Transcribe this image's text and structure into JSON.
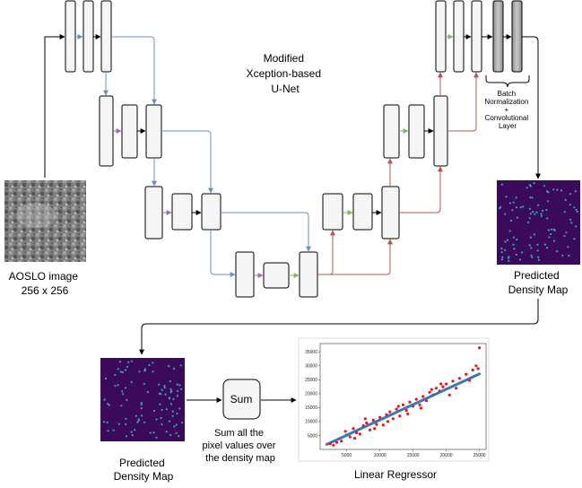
{
  "title": {
    "lines": [
      "Modified",
      "Xception-based",
      "U-Net"
    ]
  },
  "input_image": {
    "lines": [
      "AOSLO image",
      "256 x 256"
    ]
  },
  "predicted_top": {
    "lines": [
      "Predicted",
      "Density Map"
    ]
  },
  "predicted_bottom": {
    "lines": [
      "Predicted",
      "Density Map"
    ]
  },
  "bn_note": {
    "lines": [
      "Batch",
      "Normalization",
      "+",
      "Convolutional",
      "Layer"
    ]
  },
  "sum_box": {
    "label": "Sum"
  },
  "sum_note": {
    "lines": [
      "Sum all the",
      "pixel values over",
      "the density map"
    ]
  },
  "regressor": {
    "label": "Linear Regressor"
  },
  "colors": {
    "block_fill": "#f5f5f5",
    "block_stroke": "#000000",
    "bn_fill": "#a8a8a8",
    "arrow_blue": "#6c8ebf",
    "arrow_red": "#b85450",
    "arrow_green": "#82b366",
    "arrow_purple": "#9673a6",
    "density_bg": "#3b0a5a",
    "density_dot": "#3aa5b8"
  },
  "chart_data": {
    "type": "scatter",
    "x_ticks": [
      "5000",
      "10000",
      "15000",
      "20000",
      "25000"
    ],
    "y_ticks": [
      "5000",
      "10000",
      "15000",
      "20000",
      "25000",
      "30000",
      "35000"
    ],
    "xlim": [
      1000,
      26000
    ],
    "ylim": [
      0,
      38000
    ],
    "series": [
      {
        "color": "#e31a1c",
        "marker": "dot",
        "points": [
          [
            2500,
            2000
          ],
          [
            3500,
            2500
          ],
          [
            4200,
            3000
          ],
          [
            5000,
            5200
          ],
          [
            5500,
            4500
          ],
          [
            6000,
            7500
          ],
          [
            6500,
            6000
          ],
          [
            7000,
            5500
          ],
          [
            7500,
            8500
          ],
          [
            8000,
            9500
          ],
          [
            8500,
            7000
          ],
          [
            9000,
            10500
          ],
          [
            9500,
            9000
          ],
          [
            10000,
            11500
          ],
          [
            10500,
            8800
          ],
          [
            11000,
            12500
          ],
          [
            11500,
            13500
          ],
          [
            12000,
            11000
          ],
          [
            12500,
            14500
          ],
          [
            13000,
            12000
          ],
          [
            13500,
            16000
          ],
          [
            14000,
            14000
          ],
          [
            14500,
            17000
          ],
          [
            15000,
            15500
          ],
          [
            15500,
            18000
          ],
          [
            16000,
            16000
          ],
          [
            16500,
            19000
          ],
          [
            17000,
            17500
          ],
          [
            17500,
            20500
          ],
          [
            18000,
            19500
          ],
          [
            18500,
            22000
          ],
          [
            19000,
            21000
          ],
          [
            19500,
            22500
          ],
          [
            20000,
            23500
          ],
          [
            20500,
            19500
          ],
          [
            21000,
            24500
          ],
          [
            22000,
            25500
          ],
          [
            23000,
            27000
          ],
          [
            24000,
            28500
          ],
          [
            24500,
            30000
          ],
          [
            25000,
            36500
          ],
          [
            24800,
            29000
          ],
          [
            3000,
            1500
          ],
          [
            4800,
            6500
          ],
          [
            6200,
            4000
          ],
          [
            7800,
            11000
          ],
          [
            9200,
            7500
          ],
          [
            11200,
            10000
          ],
          [
            12800,
            15500
          ],
          [
            14200,
            12800
          ],
          [
            16200,
            14800
          ],
          [
            17800,
            21500
          ],
          [
            19200,
            23500
          ],
          [
            21500,
            22000
          ],
          [
            23500,
            24800
          ]
        ]
      },
      {
        "color": "#3a78b5",
        "marker": "line-dot",
        "points": [
          [
            2000,
            1800
          ],
          [
            3000,
            2900
          ],
          [
            4000,
            4000
          ],
          [
            5000,
            5100
          ],
          [
            6000,
            6200
          ],
          [
            7000,
            7300
          ],
          [
            8000,
            8400
          ],
          [
            9000,
            9500
          ],
          [
            10000,
            10600
          ],
          [
            11000,
            11700
          ],
          [
            12000,
            12800
          ],
          [
            13000,
            13900
          ],
          [
            14000,
            15000
          ],
          [
            15000,
            16100
          ],
          [
            16000,
            17200
          ],
          [
            17000,
            18300
          ],
          [
            18000,
            19400
          ],
          [
            19000,
            20500
          ],
          [
            20000,
            21600
          ],
          [
            21000,
            22700
          ],
          [
            22000,
            23800
          ],
          [
            23000,
            24900
          ],
          [
            24000,
            26000
          ],
          [
            25000,
            27100
          ]
        ]
      }
    ]
  }
}
